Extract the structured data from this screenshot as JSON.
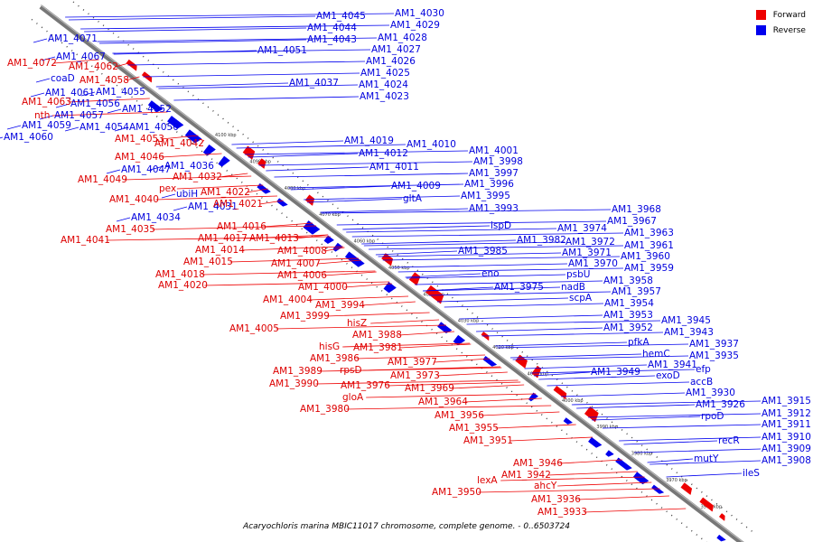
{
  "caption": "Acaryochloris marina MBIC11017 chromosome, complete genome. - 0..6503724",
  "legend": [
    {
      "label": "Forward",
      "color": "#ee0000"
    },
    {
      "label": "Reverse",
      "color": "#0000ee"
    }
  ],
  "colors": {
    "forward": "#ee0000",
    "reverse": "#0000ee",
    "backbone": "#777777"
  },
  "kbp_ticks": [
    "4100 kbp",
    "4090 kbp",
    "4080 kbp",
    "4070 kbp",
    "4060 kbp",
    "4050 kbp",
    "4040 kbp",
    "4030 kbp",
    "4020 kbp",
    "4010 kbp",
    "4000 kbp",
    "3990 kbp",
    "3980 kbp",
    "3970 kbp",
    "3960 kbp"
  ],
  "forward_labels": [
    "AM1_4072",
    "AM1_4062",
    "AM1_4058",
    "AM1_4063",
    "nth",
    "AM1_4053",
    "AM1_4042",
    "AM1_4046",
    "AM1_4049",
    "AM1_4032",
    "pex",
    "AM1_4040",
    "AM1_4022",
    "AM1_4021",
    "AM1_4035",
    "AM1_4041",
    "AM1_4016",
    "AM1_4017",
    "AM1_4013",
    "AM1_4014",
    "AM1_4008",
    "AM1_4015",
    "AM1_4007",
    "AM1_4018",
    "AM1_4006",
    "AM1_4020",
    "AM1_4000",
    "AM1_4004",
    "AM1_3994",
    "AM1_3999",
    "AM1_4005",
    "hisZ",
    "AM1_3988",
    "hisG",
    "AM1_3981",
    "AM1_3986",
    "AM1_3977",
    "AM1_3989",
    "rpsD",
    "AM1_3973",
    "AM1_3990",
    "AM1_3976",
    "AM1_3969",
    "gloA",
    "AM1_3980",
    "AM1_3964",
    "AM1_3956",
    "AM1_3955",
    "AM1_3951",
    "AM1_3946",
    "AM1_3942",
    "lexA",
    "ahcY",
    "AM1_3950",
    "AM1_3936",
    "AM1_3933"
  ],
  "reverse_labels": [
    "AM1_4071",
    "AM1_4067",
    "coaD",
    "AM1_4061",
    "AM1_4055",
    "AM1_4056",
    "AM1_4057",
    "AM1_4052",
    "AM1_4059",
    "AM1_4054",
    "AM1_4050",
    "AM1_4060",
    "AM1_4036",
    "AM1_4047",
    "ubiH",
    "AM1_4031",
    "AM1_4034",
    "AM1_4045",
    "AM1_4044",
    "AM1_4043",
    "AM1_4051",
    "AM1_4037",
    "AM1_4030",
    "AM1_4029",
    "AM1_4028",
    "AM1_4027",
    "AM1_4026",
    "AM1_4025",
    "AM1_4024",
    "AM1_4023",
    "AM1_4019",
    "AM1_4012",
    "AM1_4010",
    "AM1_4011",
    "AM1_4009",
    "gltA",
    "AM1_4001",
    "AM1_3998",
    "AM1_3997",
    "AM1_3996",
    "AM1_3995",
    "AM1_3993",
    "ispD",
    "AM1_3982",
    "AM1_3985",
    "eno",
    "AM1_3975",
    "AM1_3974",
    "AM1_3972",
    "AM1_3971",
    "AM1_3970",
    "psbU",
    "nadB",
    "scpA",
    "AM1_3968",
    "AM1_3967",
    "AM1_3963",
    "AM1_3961",
    "AM1_3960",
    "AM1_3959",
    "AM1_3958",
    "AM1_3957",
    "AM1_3954",
    "AM1_3953",
    "AM1_3952",
    "pfkA",
    "AM1_3949",
    "AM1_3945",
    "AM1_3943",
    "AM1_3937",
    "hemC",
    "AM1_3935",
    "AM1_3941",
    "efp",
    "exoD",
    "accB",
    "AM1_3930",
    "AM1_3926",
    "rpoD",
    "AM1_3915",
    "AM1_3912",
    "AM1_3911",
    "AM1_3910",
    "recR",
    "AM1_3909",
    "mutY",
    "AM1_3908",
    "ileS"
  ]
}
